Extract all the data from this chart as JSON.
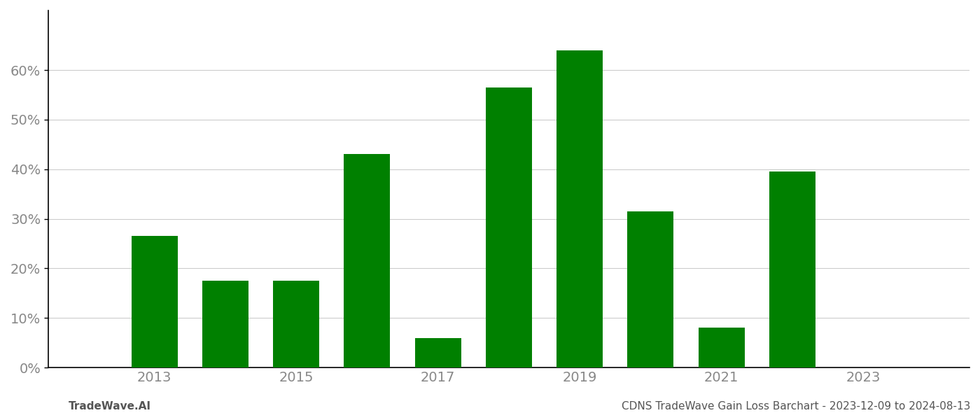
{
  "years": [
    2013,
    2014,
    2015,
    2016,
    2017,
    2018,
    2019,
    2020,
    2021,
    2022,
    2023
  ],
  "values": [
    26.5,
    17.5,
    17.5,
    43.0,
    6.0,
    56.5,
    64.0,
    31.5,
    8.0,
    39.5,
    null
  ],
  "bar_color": "#008000",
  "background_color": "#ffffff",
  "grid_color": "#cccccc",
  "axis_label_color": "#888888",
  "ylabel_ticks": [
    0,
    10,
    20,
    30,
    40,
    50,
    60
  ],
  "ylim": [
    0,
    72
  ],
  "xlim": [
    2011.5,
    2024.5
  ],
  "footer_left": "TradeWave.AI",
  "footer_right": "CDNS TradeWave Gain Loss Barchart - 2023-12-09 to 2024-08-13",
  "footer_color": "#555555",
  "footer_fontsize": 11,
  "tick_fontsize": 14,
  "bar_width": 0.65,
  "spine_color": "#000000",
  "tick_color": "#000000"
}
